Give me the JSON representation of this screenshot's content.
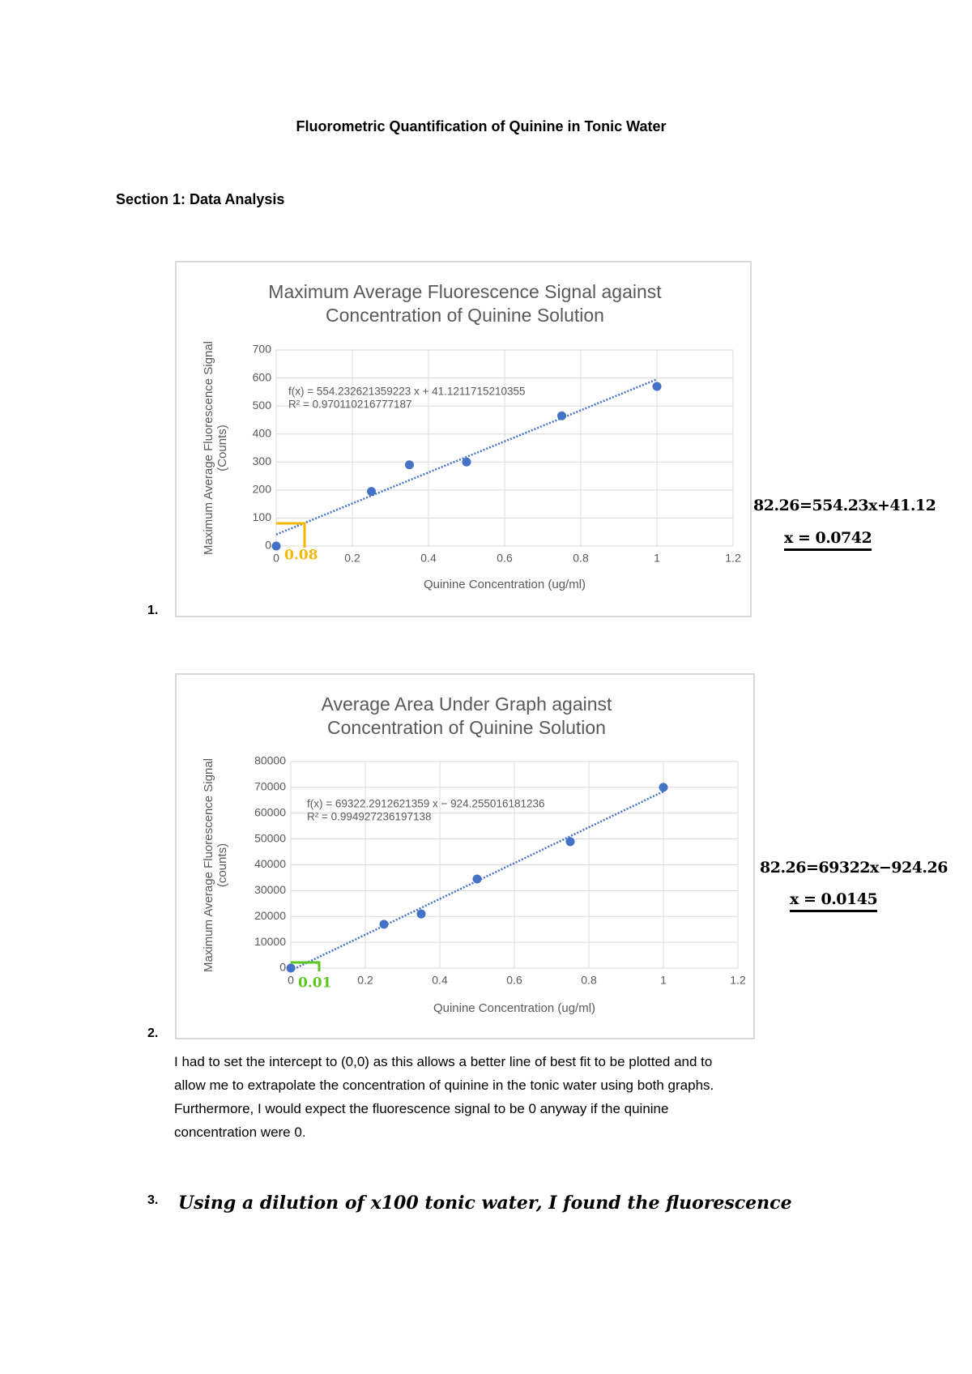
{
  "title": "Fluorometric Quantification of Quinine in Tonic Water",
  "section": "Section 1: Data Analysis",
  "chart_data": [
    {
      "type": "scatter",
      "title": "Maximum Average Fluorescence Signal against Concentration of Quinine Solution",
      "x_label": "Quinine Concentration (ug/ml)",
      "y_label": "Maximum Average Fluorescence Signal (Counts)",
      "x": [
        0,
        0.25,
        0.35,
        0.5,
        0.75,
        1
      ],
      "values": [
        0,
        195,
        290,
        300,
        465,
        570
      ],
      "color": "#4472c4",
      "xlim": [
        0,
        1.2
      ],
      "xticks": [
        0,
        0.2,
        0.4,
        0.6,
        0.8,
        1,
        1.2
      ],
      "ylim": [
        0,
        700
      ],
      "yticks": [
        0,
        100,
        200,
        300,
        400,
        500,
        600,
        700
      ],
      "grid": true,
      "trendline": {
        "slope": 554.232621359223,
        "intercept": 41.1211715210355,
        "label": "f(x) = 554.232621359223 x + 41.1211715210355",
        "r2_label": "R² = 0.970110216777187"
      }
    },
    {
      "type": "scatter",
      "title": "Average Area Under Graph against Concentration of Quinine Solution",
      "x_label": "Quinine Concentration (ug/ml)",
      "y_label": "Maximum Average Fluorescence Signal (counts)",
      "x": [
        0,
        0.25,
        0.35,
        0.5,
        0.75,
        1
      ],
      "values": [
        0,
        17000,
        21000,
        34500,
        49000,
        70000
      ],
      "color": "#4472c4",
      "xlim": [
        0,
        1.2
      ],
      "xticks": [
        0,
        0.2,
        0.4,
        0.6,
        0.8,
        1,
        1.2
      ],
      "ylim": [
        0,
        80000
      ],
      "yticks": [
        0,
        10000,
        20000,
        30000,
        40000,
        50000,
        60000,
        70000,
        80000
      ],
      "grid": true,
      "trendline": {
        "slope": 69322.2912621359,
        "intercept": -924.255016181236,
        "label": "f(x) = 69322.2912621359 x − 924.255016181236",
        "r2_label": "R² = 0.994927236197138"
      }
    }
  ],
  "items": [
    {
      "number": "1.",
      "notes": [
        "82.26=554.23x+41.12",
        "x = 0.0742"
      ],
      "axis_note": "0.08"
    },
    {
      "number": "2.",
      "notes": [
        "82.26=69322x−924.26",
        "x = 0.0145"
      ],
      "axis_note": "0.01"
    },
    {
      "number": "3.",
      "text": "Using a dilution of x100 tonic water, I found the fluorescence"
    }
  ],
  "paragraph": [
    "I had to set the intercept to (0,0) as this allows a better line of best fit to be plotted and to",
    "allow me to extrapolate the concentration of quinine in the tonic water using both graphs.",
    "Furthermore, I would expect the fluorescence signal to be 0 anyway if the quinine",
    "concentration were 0."
  ]
}
